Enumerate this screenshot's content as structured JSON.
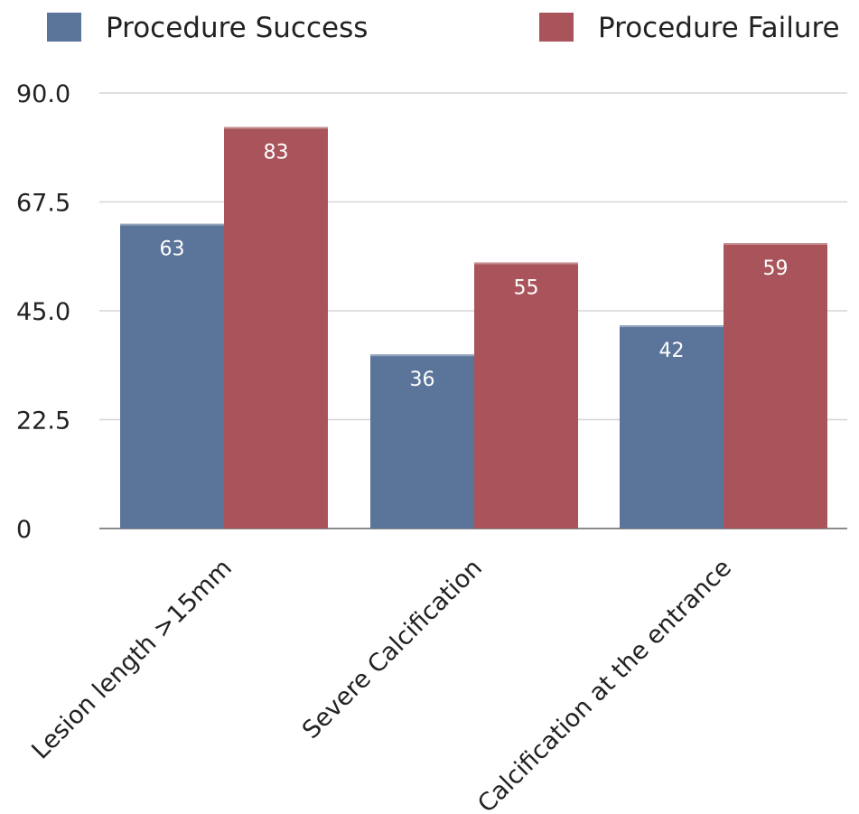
{
  "chart_data": {
    "type": "bar",
    "title": "",
    "xlabel": "",
    "ylabel": "",
    "categories": [
      "Lesion length >15mm",
      "Severe Calcification",
      "Calcification at the entrance"
    ],
    "series": [
      {
        "name": "Procedure Success",
        "values": [
          63,
          36,
          42
        ],
        "color": "#5b7499"
      },
      {
        "name": "Procedure Failure",
        "values": [
          83,
          55,
          59
        ],
        "color": "#a8545a"
      }
    ],
    "ylim": [
      0,
      90
    ],
    "yticks": [
      0,
      22.5,
      45,
      67.5,
      90
    ],
    "ytick_labels": [
      "0",
      "22.5",
      "45.0",
      "67.5",
      "90.0"
    ],
    "grid": true,
    "legend_position": "top",
    "data_labels": true
  }
}
